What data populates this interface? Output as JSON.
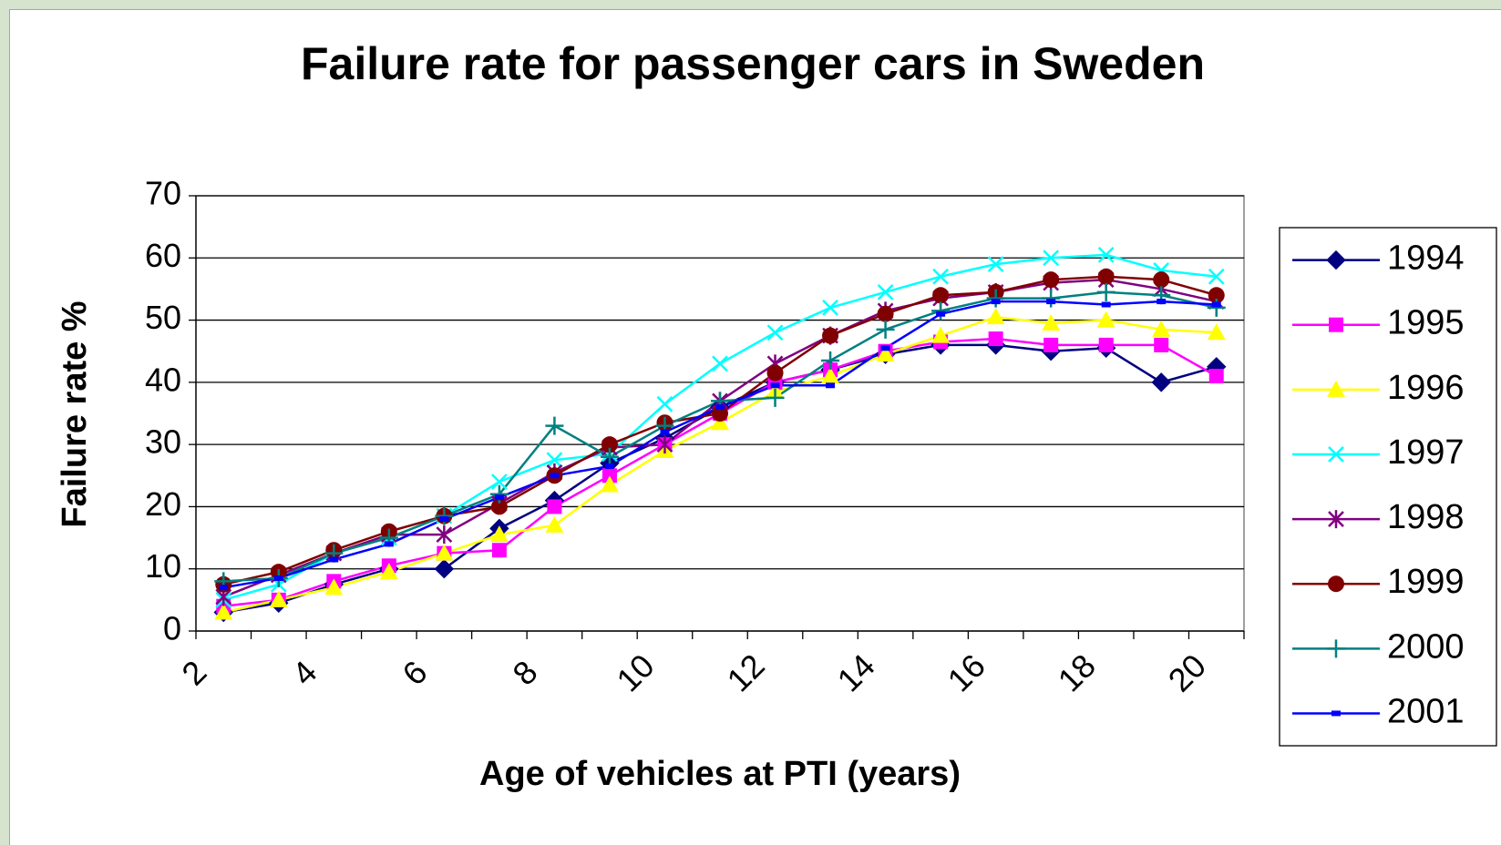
{
  "chart_data": {
    "type": "line",
    "title": "Failure rate for passenger cars in Sweden",
    "x_label": "Age of vehicles at PTI (years)",
    "y_label": "Failure rate %",
    "categories": [
      "2",
      null,
      "4",
      null,
      "6",
      null,
      "8",
      null,
      "10",
      null,
      "12",
      null,
      "14",
      null,
      "16",
      null,
      "18",
      null,
      "20"
    ],
    "ylim": [
      0,
      70
    ],
    "yticks": [
      0,
      10,
      20,
      30,
      40,
      50,
      60,
      70
    ],
    "grid": true,
    "legend": "right",
    "series": [
      {
        "name": "1994",
        "color": "#000080",
        "marker": "diamond",
        "values": [
          3,
          4.5,
          7.5,
          10,
          10,
          16.5,
          21,
          27,
          31,
          36,
          40,
          42,
          44.5,
          46,
          46,
          45,
          45.5,
          40,
          42.5
        ]
      },
      {
        "name": "1995",
        "color": "#ff00ff",
        "marker": "square",
        "values": [
          4,
          5,
          8,
          10.5,
          12.5,
          13,
          20,
          25,
          30,
          35,
          40,
          42,
          45,
          46.5,
          47,
          46,
          46,
          46,
          41
        ]
      },
      {
        "name": "1996",
        "color": "#ffff00",
        "marker": "triangle",
        "values": [
          3,
          5,
          7,
          9.5,
          12.5,
          15.5,
          17,
          23.5,
          29,
          33.5,
          38.5,
          41,
          44.5,
          47.5,
          50.5,
          49.5,
          50,
          48.5,
          48
        ]
      },
      {
        "name": "1997",
        "color": "#00ffff",
        "marker": "x",
        "values": [
          5,
          7.5,
          12.5,
          15,
          18.5,
          24,
          27.5,
          28.5,
          36.5,
          43,
          48,
          52,
          54.5,
          57,
          59,
          60,
          60.5,
          58,
          57
        ]
      },
      {
        "name": "1998",
        "color": "#800080",
        "marker": "star",
        "values": [
          5.5,
          9,
          12.5,
          15.5,
          15.5,
          20.5,
          25.5,
          29.5,
          30,
          37,
          43,
          47.5,
          51.5,
          53.5,
          54.5,
          56,
          56.5,
          55,
          53
        ]
      },
      {
        "name": "1999",
        "color": "#800000",
        "marker": "circle",
        "values": [
          7.5,
          9.5,
          13,
          16,
          18.5,
          20,
          25,
          30,
          33.5,
          35,
          41.5,
          47.5,
          51,
          54,
          54.5,
          56.5,
          57,
          56.5,
          54
        ]
      },
      {
        "name": "2000",
        "color": "#008080",
        "marker": "plus",
        "values": [
          8,
          8.5,
          12.5,
          15,
          18.5,
          22,
          33,
          28,
          33,
          37,
          37.5,
          43.5,
          48.5,
          51.5,
          53.5,
          53.5,
          54.5,
          54,
          52
        ]
      },
      {
        "name": "2001",
        "color": "#0000ff",
        "marker": "dash",
        "values": [
          7,
          8.5,
          11.5,
          14,
          18,
          21.5,
          25,
          26.5,
          32,
          36,
          39.5,
          39.5,
          45.5,
          51,
          53,
          53,
          52.5,
          53,
          52.5
        ]
      }
    ]
  }
}
